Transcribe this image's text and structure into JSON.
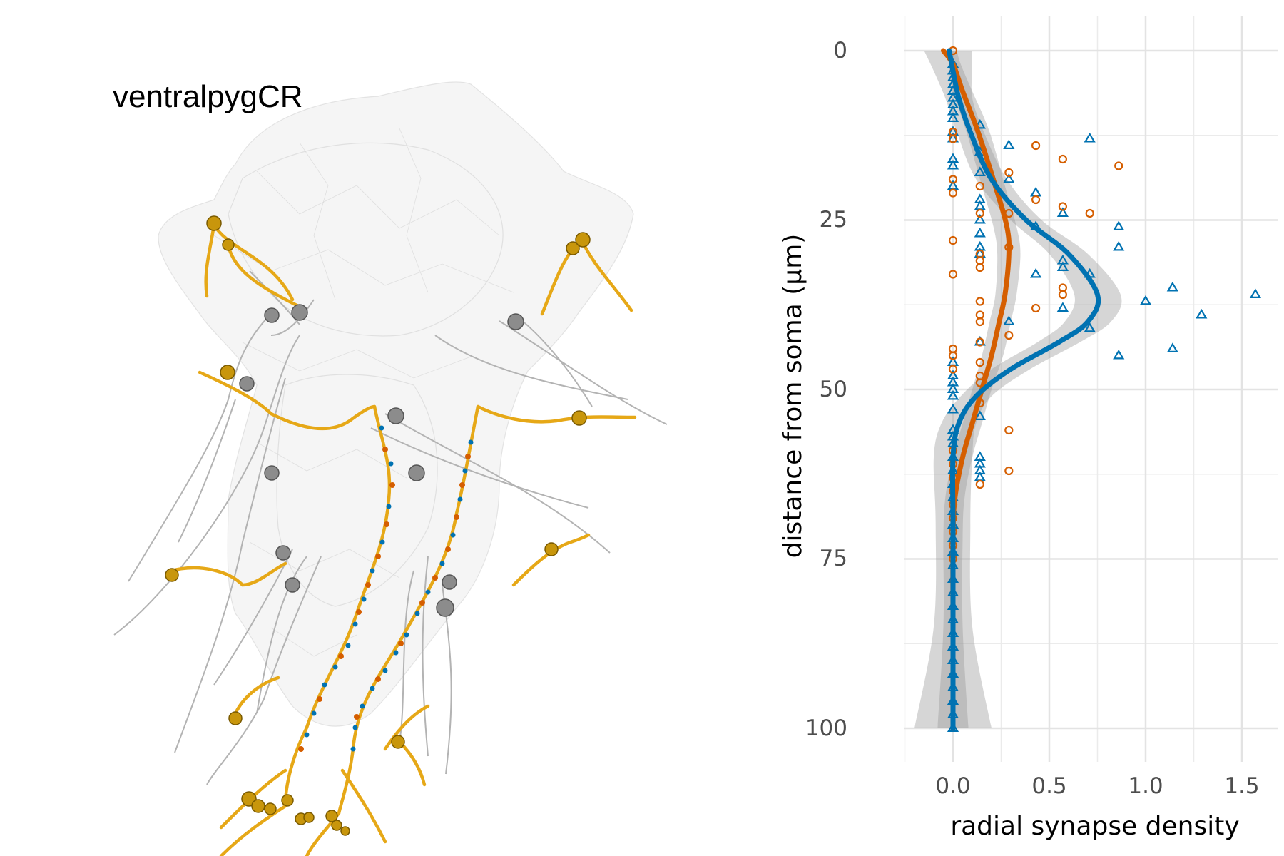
{
  "left_panel": {
    "title": "ventralpygCR",
    "colors": {
      "mesh": "#d9d9d9",
      "axon": "#e6a817",
      "input": "#0072b2",
      "output": "#d55e00",
      "sibling": "#b3b3b3",
      "soma_gold": "#c8960c",
      "soma_grey": "#8c8c8c"
    }
  },
  "chart_data": {
    "type": "scatter",
    "xlabel": "radial synapse density",
    "ylabel": "distance from soma (µm)",
    "xlim": [
      -0.25,
      1.6
    ],
    "ylim": [
      0,
      100
    ],
    "y_reversed": true,
    "x_ticks": [
      0.0,
      0.5,
      1.0,
      1.5
    ],
    "x_tick_labels": [
      "0.0",
      "0.5",
      "1.0",
      "1.5"
    ],
    "y_ticks": [
      0,
      25,
      50,
      75,
      100
    ],
    "y_tick_labels": [
      "0",
      "25",
      "50",
      "75",
      "100"
    ],
    "grid": true,
    "legend": "none",
    "series": [
      {
        "marker": "triangle-open",
        "color": "#0072b2",
        "points": [
          [
            0,
            2
          ],
          [
            0,
            3
          ],
          [
            0,
            4
          ],
          [
            0,
            5
          ],
          [
            0,
            6
          ],
          [
            0,
            7
          ],
          [
            0,
            8
          ],
          [
            0,
            9
          ],
          [
            0,
            10
          ],
          [
            0,
            12
          ],
          [
            0,
            13
          ],
          [
            0,
            16
          ],
          [
            0,
            17
          ],
          [
            0,
            20
          ],
          [
            0,
            46
          ],
          [
            0,
            48
          ],
          [
            0,
            49
          ],
          [
            0,
            50
          ],
          [
            0,
            51
          ],
          [
            0,
            53
          ],
          [
            0,
            56
          ],
          [
            0,
            57
          ],
          [
            0,
            58
          ],
          [
            0,
            60
          ],
          [
            0,
            62
          ],
          [
            0,
            64
          ],
          [
            0,
            66
          ],
          [
            0,
            68
          ],
          [
            0,
            70
          ],
          [
            0,
            72
          ],
          [
            0,
            74
          ],
          [
            0,
            76
          ],
          [
            0,
            78
          ],
          [
            0,
            80
          ],
          [
            0,
            82
          ],
          [
            0,
            84
          ],
          [
            0,
            86
          ],
          [
            0,
            88
          ],
          [
            0,
            90
          ],
          [
            0,
            92
          ],
          [
            0,
            94
          ],
          [
            0,
            96
          ],
          [
            0,
            98
          ],
          [
            0,
            100
          ],
          [
            0.14,
            11
          ],
          [
            0.14,
            15
          ],
          [
            0.14,
            18
          ],
          [
            0.14,
            22
          ],
          [
            0.14,
            23
          ],
          [
            0.14,
            25
          ],
          [
            0.14,
            27
          ],
          [
            0.14,
            29
          ],
          [
            0.14,
            30
          ],
          [
            0.14,
            43
          ],
          [
            0.14,
            54
          ],
          [
            0.14,
            60
          ],
          [
            0.14,
            61
          ],
          [
            0.14,
            62
          ],
          [
            0.14,
            63
          ],
          [
            0.29,
            14
          ],
          [
            0.29,
            19
          ],
          [
            0.29,
            40
          ],
          [
            0.43,
            21
          ],
          [
            0.43,
            26
          ],
          [
            0.43,
            33
          ],
          [
            0.57,
            24
          ],
          [
            0.57,
            31
          ],
          [
            0.57,
            32
          ],
          [
            0.57,
            38
          ],
          [
            0.71,
            13
          ],
          [
            0.71,
            33
          ],
          [
            0.71,
            41
          ],
          [
            0.86,
            26
          ],
          [
            0.86,
            29
          ],
          [
            0.86,
            45
          ],
          [
            1.0,
            37
          ],
          [
            1.14,
            35
          ],
          [
            1.14,
            44
          ],
          [
            1.29,
            39
          ],
          [
            1.57,
            36
          ]
        ]
      },
      {
        "marker": "circle-open",
        "color": "#d55e00",
        "points": [
          [
            0,
            0
          ],
          [
            0,
            12
          ],
          [
            0,
            13
          ],
          [
            0,
            19
          ],
          [
            0,
            21
          ],
          [
            0,
            28
          ],
          [
            0,
            33
          ],
          [
            0,
            44
          ],
          [
            0,
            45
          ],
          [
            0,
            47
          ],
          [
            0,
            59
          ],
          [
            0,
            61
          ],
          [
            0,
            63
          ],
          [
            0,
            65
          ],
          [
            0,
            67
          ],
          [
            0,
            69
          ],
          [
            0,
            71
          ],
          [
            0,
            73
          ],
          [
            0,
            75
          ],
          [
            0.14,
            20
          ],
          [
            0.14,
            24
          ],
          [
            0.14,
            30
          ],
          [
            0.14,
            31
          ],
          [
            0.14,
            32
          ],
          [
            0.14,
            37
          ],
          [
            0.14,
            39
          ],
          [
            0.14,
            40
          ],
          [
            0.14,
            43
          ],
          [
            0.14,
            46
          ],
          [
            0.14,
            48
          ],
          [
            0.14,
            49
          ],
          [
            0.14,
            52
          ],
          [
            0.14,
            64
          ],
          [
            0.29,
            18
          ],
          [
            0.29,
            24
          ],
          [
            0.29,
            29
          ],
          [
            0.29,
            42
          ],
          [
            0.29,
            56
          ],
          [
            0.29,
            62
          ],
          [
            0.43,
            14
          ],
          [
            0.43,
            22
          ],
          [
            0.43,
            38
          ],
          [
            0.57,
            16
          ],
          [
            0.57,
            23
          ],
          [
            0.57,
            35
          ],
          [
            0.57,
            36
          ],
          [
            0.71,
            24
          ],
          [
            0.86,
            17
          ]
        ]
      }
    ],
    "smooths": [
      {
        "color": "#d55e00",
        "points": [
          [
            -0.05,
            0
          ],
          [
            0,
            2
          ],
          [
            0.05,
            6
          ],
          [
            0.13,
            12
          ],
          [
            0.22,
            20
          ],
          [
            0.28,
            26
          ],
          [
            0.29,
            30
          ],
          [
            0.27,
            36
          ],
          [
            0.24,
            40
          ],
          [
            0.2,
            45
          ],
          [
            0.15,
            50
          ],
          [
            0.1,
            55
          ],
          [
            0.05,
            60
          ],
          [
            0.01,
            66
          ],
          [
            0,
            72
          ],
          [
            0,
            85
          ],
          [
            0,
            100
          ]
        ],
        "band": [
          [
            -0.02,
            0.02
          ],
          [
            -0.02,
            0.04
          ],
          [
            0.0,
            0.1
          ],
          [
            0.07,
            0.19
          ],
          [
            0.15,
            0.27
          ],
          [
            0.21,
            0.33
          ],
          [
            0.23,
            0.35
          ],
          [
            0.22,
            0.33
          ],
          [
            0.19,
            0.3
          ],
          [
            0.15,
            0.26
          ],
          [
            0.1,
            0.2
          ],
          [
            0.05,
            0.15
          ],
          [
            0.0,
            0.1
          ],
          [
            -0.04,
            0.06
          ],
          [
            -0.05,
            0.05
          ],
          [
            -0.05,
            0.05
          ],
          [
            -0.08,
            0.08
          ]
        ]
      },
      {
        "color": "#0072b2",
        "points": [
          [
            -0.02,
            0
          ],
          [
            0,
            3
          ],
          [
            0.03,
            7
          ],
          [
            0.09,
            12
          ],
          [
            0.2,
            19
          ],
          [
            0.38,
            25
          ],
          [
            0.6,
            30
          ],
          [
            0.75,
            36
          ],
          [
            0.7,
            40
          ],
          [
            0.55,
            43
          ],
          [
            0.3,
            47
          ],
          [
            0.12,
            51
          ],
          [
            0.03,
            55
          ],
          [
            0,
            60
          ],
          [
            0,
            70
          ],
          [
            0,
            85
          ],
          [
            0,
            100
          ]
        ],
        "band": [
          [
            -0.15,
            0.1
          ],
          [
            -0.1,
            0.1
          ],
          [
            -0.04,
            0.1
          ],
          [
            0.02,
            0.16
          ],
          [
            0.12,
            0.28
          ],
          [
            0.3,
            0.46
          ],
          [
            0.5,
            0.7
          ],
          [
            0.63,
            0.87
          ],
          [
            0.58,
            0.82
          ],
          [
            0.44,
            0.66
          ],
          [
            0.2,
            0.4
          ],
          [
            0.04,
            0.2
          ],
          [
            -0.06,
            0.12
          ],
          [
            -0.1,
            0.1
          ],
          [
            -0.09,
            0.09
          ],
          [
            -0.1,
            0.1
          ],
          [
            -0.2,
            0.2
          ]
        ]
      }
    ]
  }
}
